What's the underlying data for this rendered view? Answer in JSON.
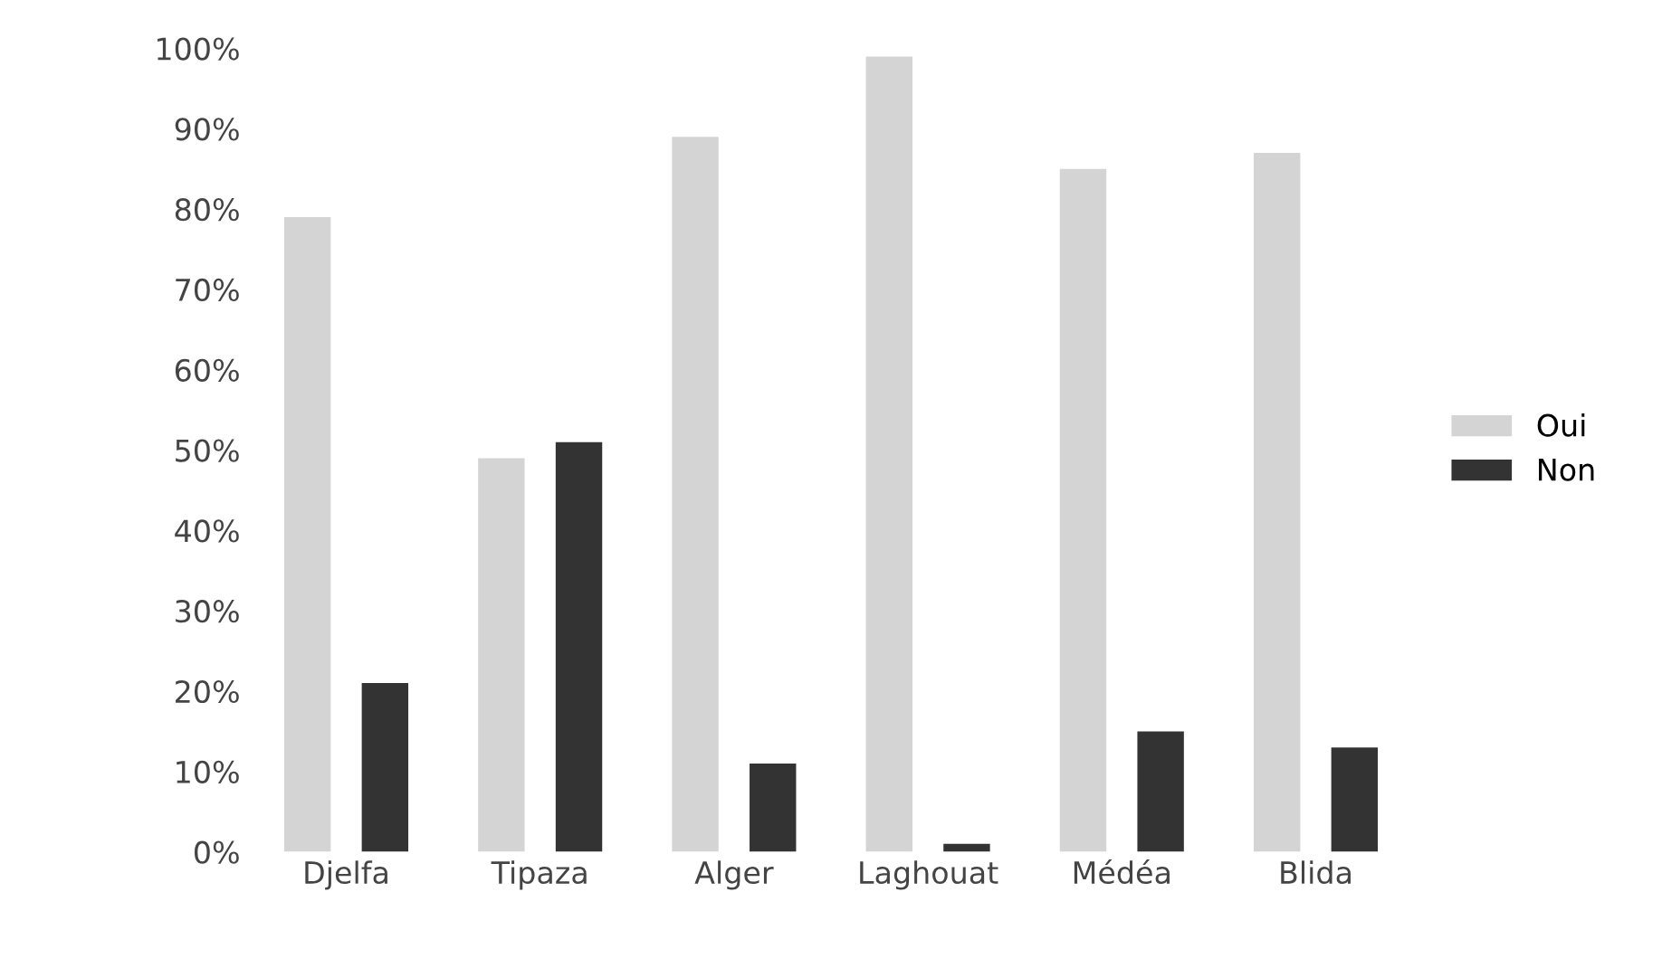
{
  "chart_data": {
    "type": "bar",
    "categories": [
      "Djelfa",
      "Tipaza",
      "Alger",
      "Laghouat",
      "Médéa",
      "Blida"
    ],
    "series": [
      {
        "name": "Oui",
        "color": "#d4d4d4",
        "values": [
          79,
          49,
          89,
          99,
          85,
          87
        ]
      },
      {
        "name": "Non",
        "color": "#333333",
        "values": [
          21,
          51,
          11,
          1,
          15,
          13
        ]
      }
    ],
    "ylim": [
      0,
      100
    ],
    "yticks": [
      {
        "value": 0,
        "label": "0%"
      },
      {
        "value": 10,
        "label": "10%"
      },
      {
        "value": 20,
        "label": "20%"
      },
      {
        "value": 30,
        "label": "30%"
      },
      {
        "value": 40,
        "label": "40%"
      },
      {
        "value": 50,
        "label": "50%"
      },
      {
        "value": 60,
        "label": "60%"
      },
      {
        "value": 70,
        "label": "70%"
      },
      {
        "value": 80,
        "label": "80%"
      },
      {
        "value": 90,
        "label": "90%"
      },
      {
        "value": 100,
        "label": "100%"
      }
    ],
    "grid": false,
    "legend": "right"
  }
}
